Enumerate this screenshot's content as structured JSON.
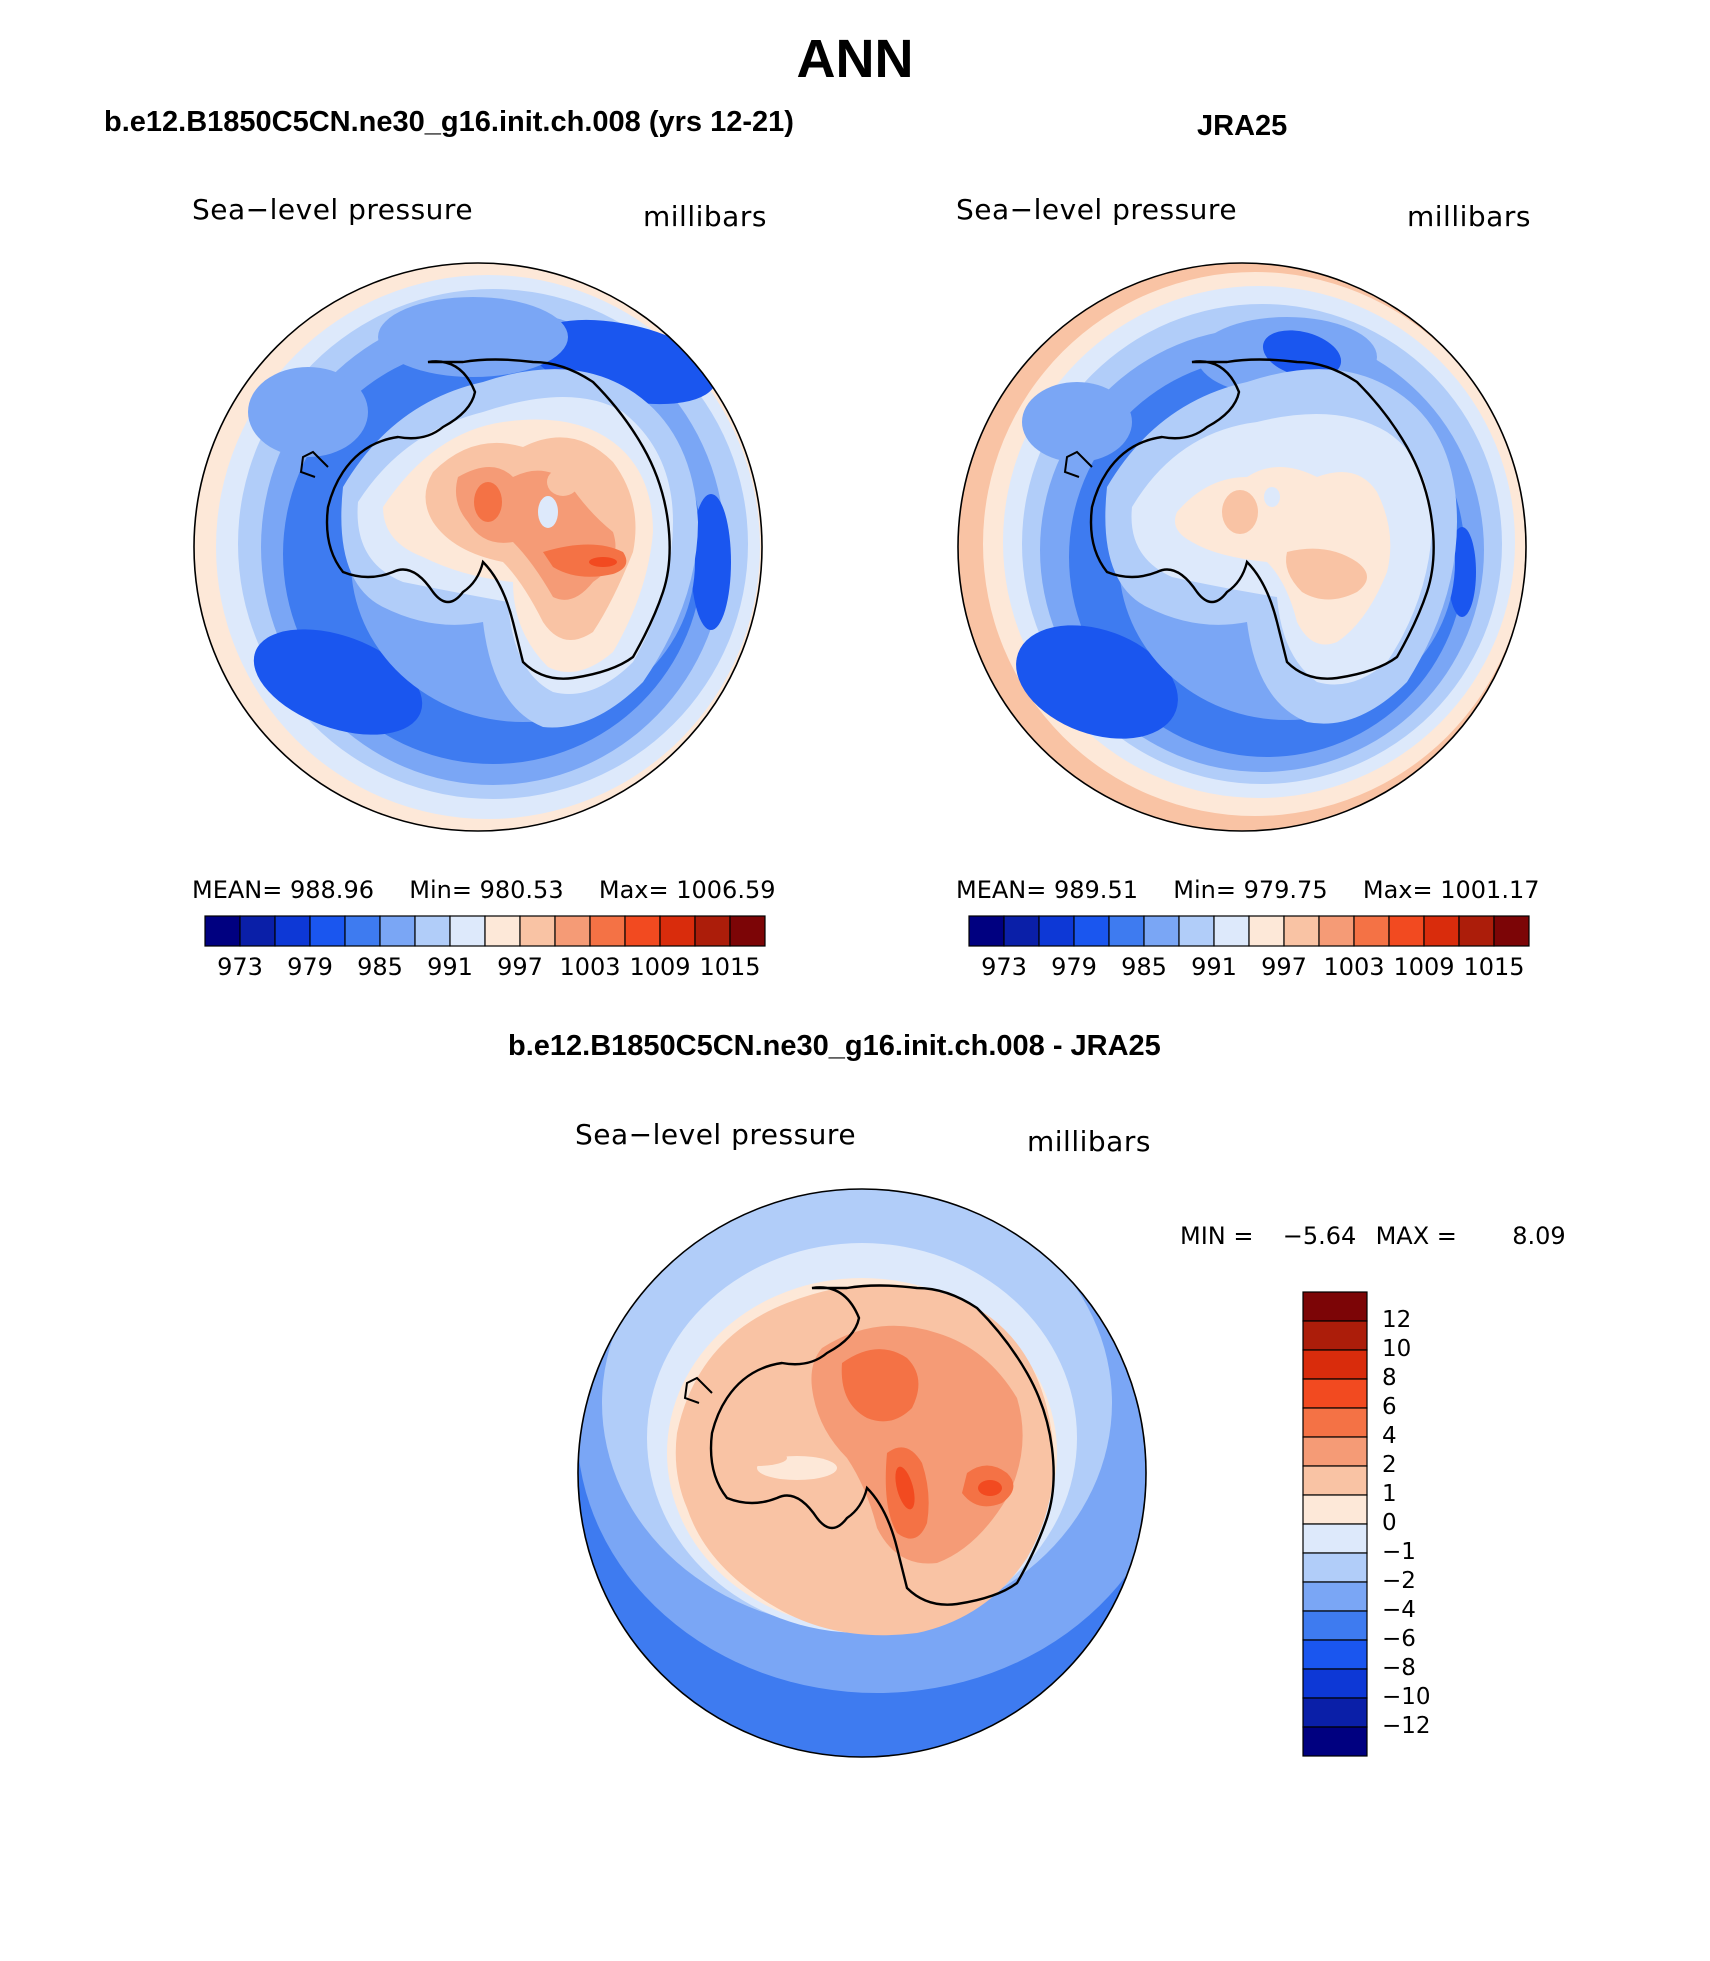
{
  "figure": {
    "season": "ANN"
  },
  "panels": {
    "model": {
      "title": "b.e12.B1850C5CN.ne30_g16.init.ch.008 (yrs 12-21)",
      "variable": "Sea−level pressure",
      "units": "millibars",
      "stats": {
        "mean_label": "MEAN=",
        "mean": "988.96",
        "min_label": "Min=",
        "min": "980.53",
        "max_label": "Max=",
        "max": "1006.59"
      }
    },
    "obs": {
      "title": "JRA25",
      "variable": "Sea−level pressure",
      "units": "millibars",
      "stats": {
        "mean_label": "MEAN=",
        "mean": "989.51",
        "min_label": "Min=",
        "min": "979.75",
        "max_label": "Max=",
        "max": "1001.17"
      }
    },
    "diff": {
      "title": "b.e12.B1850C5CN.ne30_g16.init.ch.008 - JRA25",
      "variable": "Sea−level pressure",
      "units": "millibars",
      "range_text": {
        "min_label": "MIN =",
        "min": "−5.64",
        "max_label": "MAX =",
        "max": "8.09"
      }
    }
  },
  "colorbars": {
    "field": {
      "colors": [
        "#000080",
        "#0a1fa8",
        "#0d38d6",
        "#1a56ef",
        "#3e7bf0",
        "#7aa6f5",
        "#b1cdf9",
        "#dde9fb",
        "#fde8d8",
        "#f9c3a4",
        "#f59b76",
        "#f47245",
        "#f24a20",
        "#d92c0c",
        "#ac1d0a",
        "#7c0506"
      ],
      "labels": [
        "973",
        "979",
        "985",
        "991",
        "997",
        "1003",
        "1009",
        "1015"
      ]
    },
    "diff": {
      "colors": [
        "#7c0506",
        "#ac1d0a",
        "#d92c0c",
        "#f24a20",
        "#f47245",
        "#f59b76",
        "#f9c3a4",
        "#fde8d8",
        "#dde9fb",
        "#b1cdf9",
        "#7aa6f5",
        "#3e7bf0",
        "#1a56ef",
        "#0d38d6",
        "#0a1fa8",
        "#000080"
      ],
      "labels": [
        "12",
        "10",
        "8",
        "6",
        "4",
        "2",
        "1",
        "0",
        "−1",
        "−2",
        "−4",
        "−6",
        "−8",
        "−10",
        "−12"
      ]
    }
  }
}
